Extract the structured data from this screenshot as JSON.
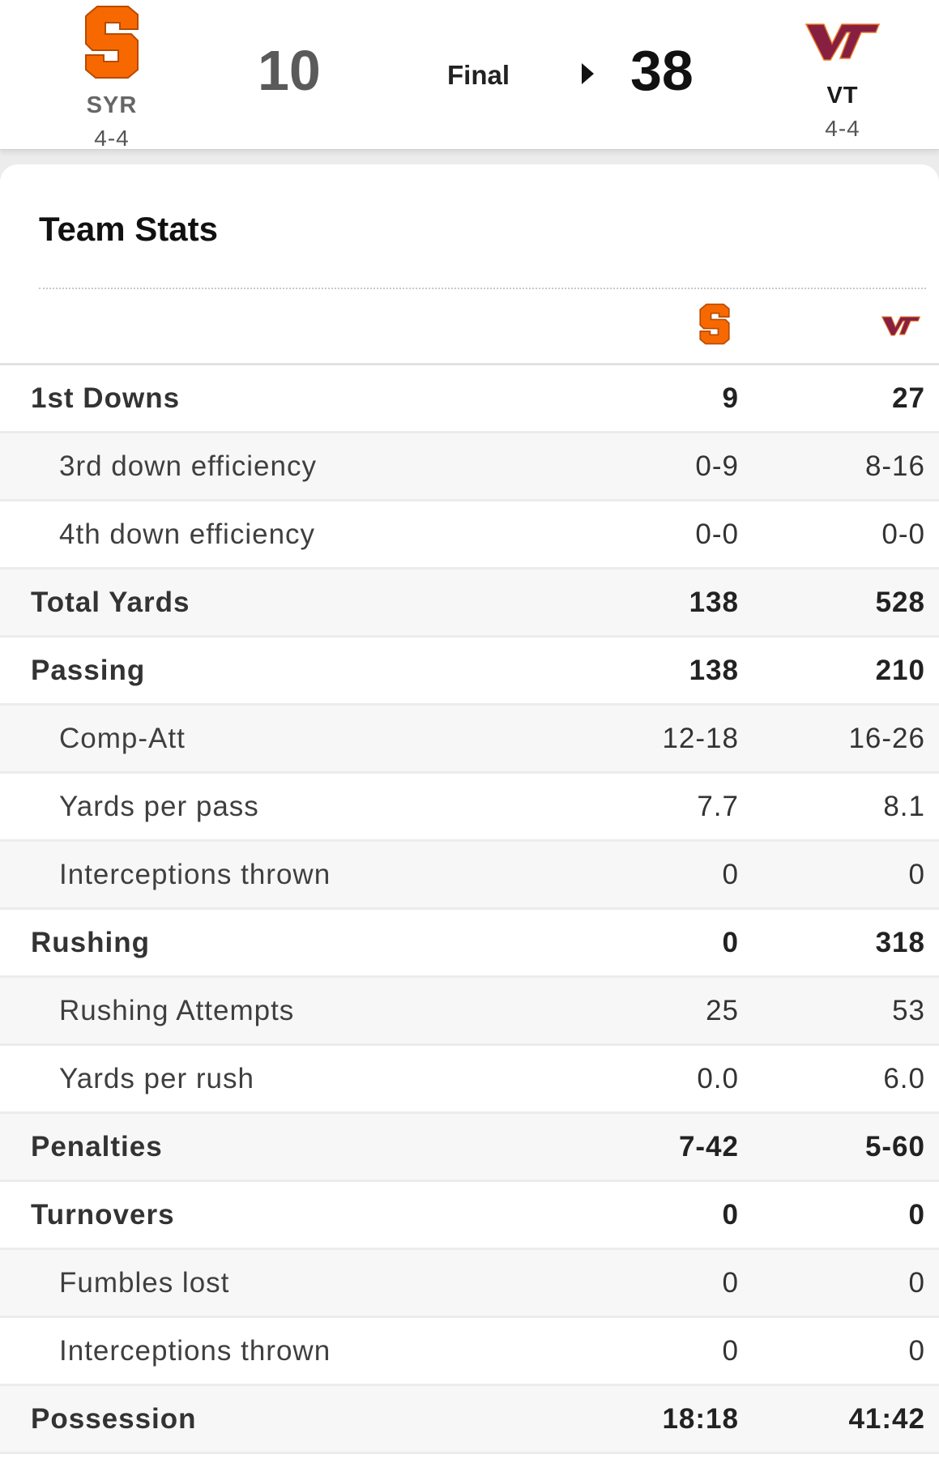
{
  "game": {
    "status": "Final",
    "home": {
      "abbr": "SYR",
      "record": "4-4",
      "score": "10",
      "logo_icon": "syracuse-s-logo-icon",
      "color": "#F76900"
    },
    "away": {
      "abbr": "VT",
      "record": "4-4",
      "score": "38",
      "logo_icon": "virginia-tech-vt-logo-icon",
      "color": "#861F41"
    }
  },
  "team_stats": {
    "title": "Team Stats",
    "rows": [
      {
        "label": "1st Downs",
        "home": "9",
        "away": "27",
        "level": "main"
      },
      {
        "label": "3rd down efficiency",
        "home": "0-9",
        "away": "8-16",
        "level": "sub"
      },
      {
        "label": "4th down efficiency",
        "home": "0-0",
        "away": "0-0",
        "level": "sub"
      },
      {
        "label": "Total Yards",
        "home": "138",
        "away": "528",
        "level": "main"
      },
      {
        "label": "Passing",
        "home": "138",
        "away": "210",
        "level": "main"
      },
      {
        "label": "Comp-Att",
        "home": "12-18",
        "away": "16-26",
        "level": "sub"
      },
      {
        "label": "Yards per pass",
        "home": "7.7",
        "away": "8.1",
        "level": "sub"
      },
      {
        "label": "Interceptions thrown",
        "home": "0",
        "away": "0",
        "level": "sub"
      },
      {
        "label": "Rushing",
        "home": "0",
        "away": "318",
        "level": "main"
      },
      {
        "label": "Rushing Attempts",
        "home": "25",
        "away": "53",
        "level": "sub"
      },
      {
        "label": "Yards per rush",
        "home": "0.0",
        "away": "6.0",
        "level": "sub"
      },
      {
        "label": "Penalties",
        "home": "7-42",
        "away": "5-60",
        "level": "main"
      },
      {
        "label": "Turnovers",
        "home": "0",
        "away": "0",
        "level": "main"
      },
      {
        "label": "Fumbles lost",
        "home": "0",
        "away": "0",
        "level": "sub"
      },
      {
        "label": "Interceptions thrown",
        "home": "0",
        "away": "0",
        "level": "sub"
      },
      {
        "label": "Possession",
        "home": "18:18",
        "away": "41:42",
        "level": "main"
      }
    ]
  }
}
